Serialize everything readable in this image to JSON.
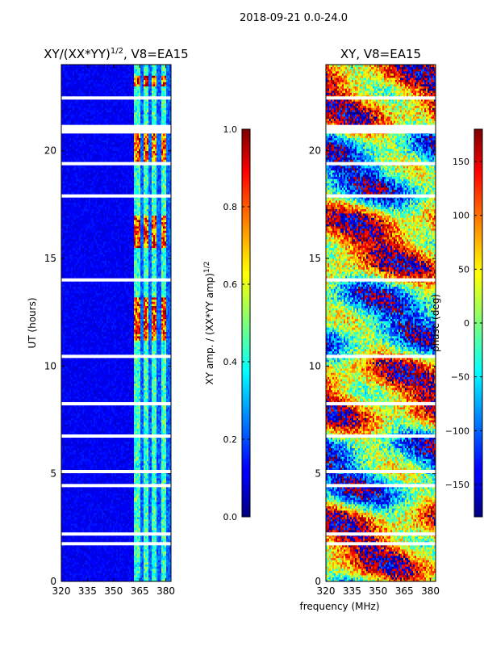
{
  "figure": {
    "suptitle": "2018-09-21 0.0-24.0",
    "shared_xlabel": "frequency (MHz)"
  },
  "chart_data": [
    {
      "type": "heatmap",
      "title_main": "XY/(XX*YY)",
      "title_sup": "1/2",
      "title_tail": ", V8=EA15",
      "ylabel": "UT (hours)",
      "x_ticks": [
        "320",
        "335",
        "350",
        "365",
        "380"
      ],
      "x_tick_values": [
        320,
        335,
        350,
        365,
        380
      ],
      "xlim": [
        320,
        383
      ],
      "y_ticks": [
        "0",
        "5",
        "10",
        "15",
        "20"
      ],
      "y_tick_values": [
        0,
        5,
        10,
        15,
        20
      ],
      "ylim": [
        0,
        24
      ],
      "colormap": "jet",
      "colorbar": {
        "label_main": "XY amp. / (XX*YY amp)",
        "label_sup": "1/2",
        "ticks": [
          "0.0",
          "0.2",
          "0.4",
          "0.6",
          "0.8",
          "1.0"
        ],
        "tick_values": [
          0.0,
          0.2,
          0.4,
          0.6,
          0.8,
          1.0
        ],
        "range": [
          0.0,
          1.0
        ]
      },
      "bright_channels_mhz": [
        363.5,
        368.5,
        373.5,
        379.0
      ],
      "bright_intervals_ut": [
        [
          11.2,
          13.2
        ],
        [
          15.5,
          17.0
        ],
        [
          19.5,
          21.2
        ],
        [
          23.0,
          23.5
        ]
      ],
      "blank_rows_ut": [
        1.75,
        2.2,
        4.45,
        5.1,
        6.75,
        8.25,
        10.45,
        14.0,
        17.9,
        19.4,
        21.0,
        22.45
      ]
    },
    {
      "type": "heatmap",
      "title": "XY, V8=EA15",
      "x_ticks": [
        "320",
        "335",
        "350",
        "365",
        "380"
      ],
      "x_tick_values": [
        320,
        335,
        350,
        365,
        380
      ],
      "xlim": [
        320,
        383
      ],
      "y_ticks": [
        "0",
        "5",
        "10",
        "15",
        "20"
      ],
      "y_tick_values": [
        0,
        5,
        10,
        15,
        20
      ],
      "ylim": [
        0,
        24
      ],
      "colormap": "jet",
      "colorbar": {
        "label": "phase (deg)",
        "ticks": [
          "−150",
          "−100",
          "−50",
          "0",
          "50",
          "100",
          "150"
        ],
        "tick_values": [
          -150,
          -100,
          -50,
          0,
          50,
          100,
          150
        ],
        "range": [
          -180,
          180
        ]
      },
      "blank_rows_ut": [
        1.75,
        2.2,
        4.45,
        5.1,
        6.75,
        8.25,
        10.45,
        14.0,
        17.9,
        19.4,
        21.0,
        22.45
      ]
    }
  ]
}
